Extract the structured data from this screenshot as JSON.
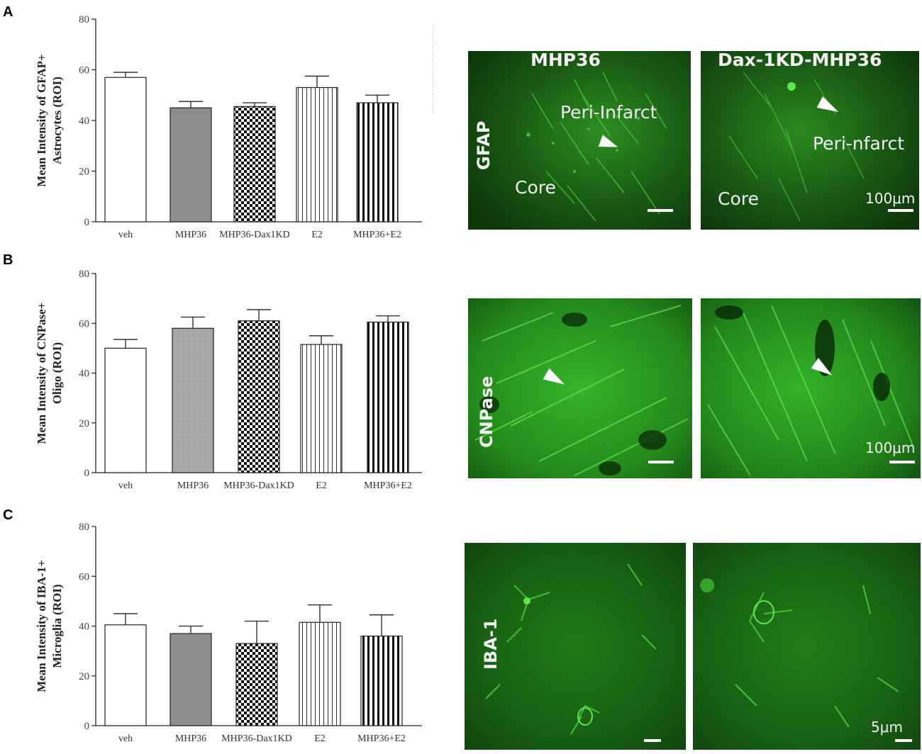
{
  "panels": [
    {
      "letter": "A"
    },
    {
      "letter": "B"
    },
    {
      "letter": "C"
    }
  ],
  "chart_data": [
    {
      "type": "bar",
      "panel": "A",
      "ylabel_line1": "Mean Intensity of GFAP+",
      "ylabel_line2": "Astrocytes (ROI)",
      "ylim": [
        0,
        80
      ],
      "yticks": [
        "0",
        "20",
        "40",
        "60",
        "80"
      ],
      "categories": [
        "veh",
        "MHP36",
        "MHP36-Dax1KD",
        "E2",
        "MHP36+E2"
      ],
      "values": [
        57,
        45,
        45.5,
        53,
        47
      ],
      "errors": [
        2,
        2.5,
        1.5,
        4.5,
        3
      ]
    },
    {
      "type": "bar",
      "panel": "B",
      "ylabel_line1": "Mean Intensity of CNPase+",
      "ylabel_line2": "Oligo (ROI)",
      "ylim": [
        0,
        80
      ],
      "yticks": [
        "0",
        "20",
        "40",
        "60",
        "80"
      ],
      "categories": [
        "veh",
        "MHP36",
        "MHP36-Dax1KD",
        "E2",
        "MHP36+E2"
      ],
      "values": [
        50,
        58,
        61,
        51.5,
        60.5
      ],
      "errors": [
        3.5,
        4.5,
        4.5,
        3.5,
        2.5
      ]
    },
    {
      "type": "bar",
      "panel": "C",
      "ylabel_line1": "Mean Intensity of IBA-1+",
      "ylabel_line2": "Microglia (ROI)",
      "ylim": [
        0,
        80
      ],
      "yticks": [
        "0",
        "20",
        "40",
        "60",
        "80"
      ],
      "categories": [
        "veh",
        "MHP36",
        "MHP36-Dax1KD",
        "E2",
        "MHP36+E2"
      ],
      "values": [
        40.5,
        37,
        33,
        41.5,
        36
      ],
      "errors": [
        4.5,
        3,
        9,
        7,
        8.5
      ]
    }
  ],
  "micrographs": {
    "row_a": {
      "stain": "GFAP",
      "left_title": "MHP36",
      "right_title": "Dax-1KD-MHP36",
      "left_region": "Peri-Infarct",
      "right_region": "Peri-nfarct",
      "core_label": "Core",
      "scale_label": "100μm"
    },
    "row_b": {
      "stain": "CNPase",
      "scale_label": "100μm"
    },
    "row_c": {
      "stain": "IBA-1",
      "scale_label": "5μm"
    }
  },
  "colors": {
    "fluorescence_dark": "#0f3a0c",
    "fluorescence_mid": "#1f7a18",
    "fluorescence_bright": "#3fc433",
    "bar_gray": "#8a8a8a"
  }
}
